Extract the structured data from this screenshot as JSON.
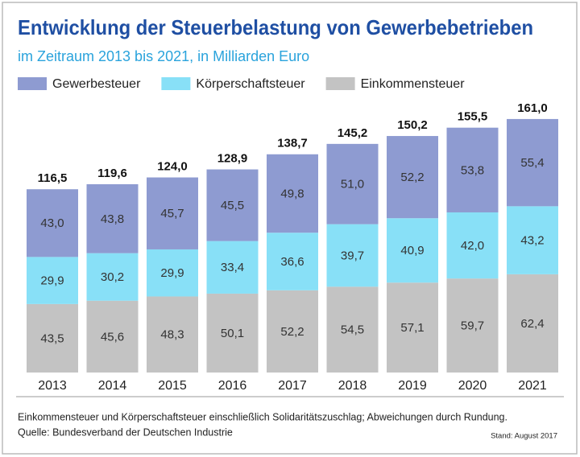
{
  "chart_data": {
    "type": "stacked_bar",
    "title": "Entwicklung der Steuerbelastung von Gewerbebetrieben",
    "subtitle": "im Zeitraum 2013 bis 2021, in Milliarden Euro",
    "categories": [
      "2013",
      "2014",
      "2015",
      "2016",
      "2017",
      "2018",
      "2019",
      "2020",
      "2021"
    ],
    "series": [
      {
        "name": "Gewerbesteuer",
        "color": "#8e9bd1",
        "values": [
          43.0,
          43.8,
          45.7,
          45.5,
          49.8,
          51.0,
          52.2,
          53.8,
          55.4
        ],
        "value_labels": [
          "43,0",
          "43,8",
          "45,7",
          "45,5",
          "49,8",
          "51,0",
          "52,2",
          "53,8",
          "55,4"
        ]
      },
      {
        "name": "Körperschaftsteuer",
        "color": "#88e0f7",
        "values": [
          29.9,
          30.2,
          29.9,
          33.4,
          36.6,
          39.7,
          40.9,
          42.0,
          43.2
        ],
        "value_labels": [
          "29,9",
          "30,2",
          "29,9",
          "33,4",
          "36,6",
          "39,7",
          "40,9",
          "42,0",
          "43,2"
        ]
      },
      {
        "name": "Einkommensteuer",
        "color": "#c3c3c3",
        "values": [
          43.5,
          45.6,
          48.3,
          50.1,
          52.2,
          54.5,
          57.1,
          59.7,
          62.4
        ],
        "value_labels": [
          "43,5",
          "45,6",
          "48,3",
          "50,1",
          "52,2",
          "54,5",
          "57,1",
          "59,7",
          "62,4"
        ]
      }
    ],
    "totals": [
      116.5,
      119.6,
      124.0,
      128.9,
      138.7,
      145.2,
      150.2,
      155.5,
      161.0
    ],
    "total_labels": [
      "116,5",
      "119,6",
      "124,0",
      "128,9",
      "138,7",
      "145,2",
      "150,2",
      "155,5",
      "161,0"
    ],
    "note": "Einkommensteuer und Körperschaftsteuer einschließlich Solidaritätszuschlag; Abweichungen durch Rundung.",
    "source": "Quelle: Bundesverband der Deutschen Industrie",
    "stand": "Stand: August 2017"
  }
}
